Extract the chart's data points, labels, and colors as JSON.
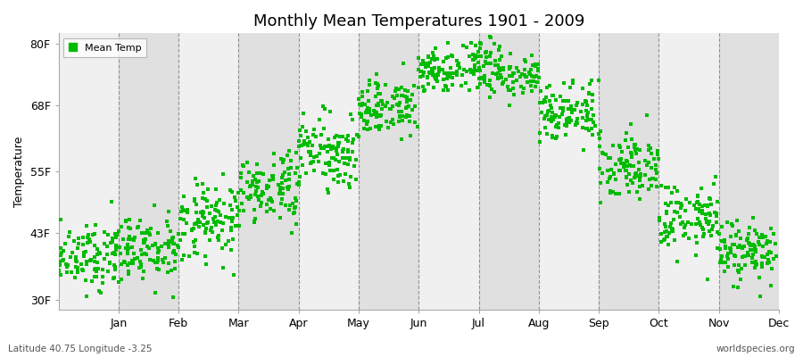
{
  "title": "Monthly Mean Temperatures 1901 - 2009",
  "ylabel": "Temperature",
  "yticks": [
    30,
    43,
    55,
    68,
    80
  ],
  "ytick_labels": [
    "30F",
    "43F",
    "55F",
    "68F",
    "80F"
  ],
  "ylim": [
    28,
    82
  ],
  "xlim": [
    0,
    12
  ],
  "month_labels": [
    "Jan",
    "Feb",
    "Mar",
    "Apr",
    "May",
    "Jun",
    "Jul",
    "Aug",
    "Sep",
    "Oct",
    "Nov",
    "Dec"
  ],
  "month_tick_positions": [
    1,
    2,
    3,
    4,
    5,
    6,
    7,
    8,
    9,
    10,
    11,
    12
  ],
  "vline_positions": [
    1,
    2,
    3,
    4,
    5,
    6,
    7,
    8,
    9,
    10,
    11
  ],
  "dot_color": "#00bb00",
  "bg_color_light": "#f0f0f0",
  "bg_color_dark": "#e0e0e0",
  "fig_color": "#ffffff",
  "footer_left": "Latitude 40.75 Longitude -3.25",
  "footer_right": "worldspecies.org",
  "legend_label": "Mean Temp",
  "years": 109,
  "monthly_means_F": [
    38.5,
    39.5,
    45.0,
    51.5,
    59.0,
    67.5,
    75.0,
    74.5,
    67.0,
    56.5,
    46.0,
    39.5
  ],
  "monthly_stds_F": [
    3.2,
    3.5,
    3.8,
    3.5,
    3.2,
    2.8,
    2.2,
    2.5,
    3.0,
    3.5,
    3.5,
    3.2
  ],
  "seed": 12
}
